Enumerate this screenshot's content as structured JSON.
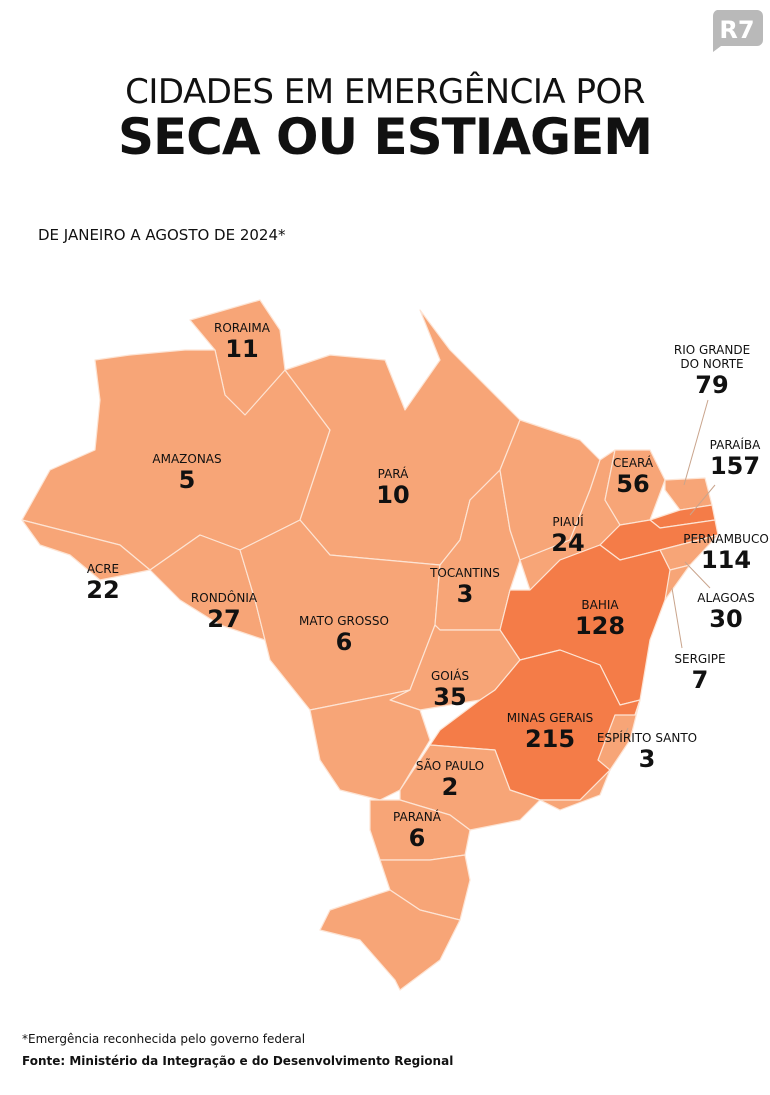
{
  "logo": "R7",
  "title_line1": "CIDADES EM EMERGÊNCIA POR",
  "title_line2": "SECA OU ESTIAGEM",
  "subtitle": "DE JANEIRO A AGOSTO DE 2024*",
  "colors": {
    "low": "#f7a577",
    "high": "#f47c48",
    "border": "#fde4d4",
    "logo": "#b9b9b9"
  },
  "states": [
    {
      "id": "roraima",
      "name": "RORAIMA",
      "value": "11",
      "level": "low"
    },
    {
      "id": "amazonas",
      "name": "AMAZONAS",
      "value": "5",
      "level": "low"
    },
    {
      "id": "acre",
      "name": "ACRE",
      "value": "22",
      "level": "low"
    },
    {
      "id": "rondonia",
      "name": "RONDÔNIA",
      "value": "27",
      "level": "low"
    },
    {
      "id": "para",
      "name": "PARÁ",
      "value": "10",
      "level": "low"
    },
    {
      "id": "mato-grosso",
      "name": "MATO GROSSO",
      "value": "6",
      "level": "low"
    },
    {
      "id": "tocantins",
      "name": "TOCANTINS",
      "value": "3",
      "level": "low"
    },
    {
      "id": "piaui",
      "name": "PIAUÍ",
      "value": "24",
      "level": "low"
    },
    {
      "id": "ceara",
      "name": "CEARÁ",
      "value": "56",
      "level": "low"
    },
    {
      "id": "rio-grande-do-norte",
      "name": "RIO GRANDE\nDO NORTE",
      "value": "79",
      "level": "low"
    },
    {
      "id": "paraiba",
      "name": "PARAÍBA",
      "value": "157",
      "level": "high"
    },
    {
      "id": "pernambuco",
      "name": "PERNAMBUCO",
      "value": "114",
      "level": "high"
    },
    {
      "id": "alagoas",
      "name": "ALAGOAS",
      "value": "30",
      "level": "low"
    },
    {
      "id": "sergipe",
      "name": "SERGIPE",
      "value": "7",
      "level": "low"
    },
    {
      "id": "bahia",
      "name": "BAHIA",
      "value": "128",
      "level": "high"
    },
    {
      "id": "goias",
      "name": "GOIÁS",
      "value": "35",
      "level": "low"
    },
    {
      "id": "minas-gerais",
      "name": "MINAS GERAIS",
      "value": "215",
      "level": "high"
    },
    {
      "id": "espirito-santo",
      "name": "ESPÍRITO SANTO",
      "value": "3",
      "level": "low"
    },
    {
      "id": "sao-paulo",
      "name": "SÃO PAULO",
      "value": "2",
      "level": "low"
    },
    {
      "id": "parana",
      "name": "PARANÁ",
      "value": "6",
      "level": "low"
    }
  ],
  "footnote": "*Emergência reconhecida pelo governo federal",
  "source": "Fonte: Ministério da Integração e do Desenvolvimento Regional"
}
